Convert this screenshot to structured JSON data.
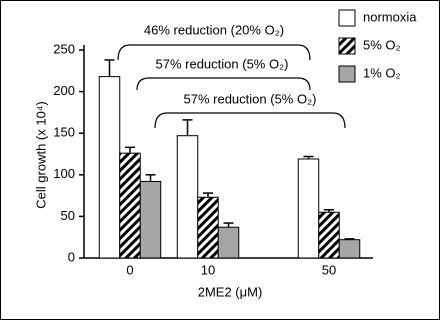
{
  "chart_data": {
    "type": "bar",
    "ylabel": "Cell growth (x 10⁴)",
    "xlabel": "2ME2 (μM)",
    "categories": [
      "0",
      "10",
      "50"
    ],
    "series": [
      {
        "name": "normoxia",
        "color": "#ffffff",
        "values": [
          218,
          147,
          119
        ],
        "errors": [
          20,
          19,
          3
        ]
      },
      {
        "name": "5% O₂",
        "color": "hatch",
        "values": [
          126,
          73,
          55
        ],
        "errors": [
          7,
          5,
          3
        ]
      },
      {
        "name": "1% O₂",
        "color": "#a6a6a6",
        "values": [
          92,
          37,
          22
        ],
        "errors": [
          8,
          5,
          1
        ]
      }
    ],
    "ylim": [
      0,
      250
    ],
    "yticks": [
      0,
      50,
      100,
      150,
      200,
      250
    ],
    "annotations": [
      "46% reduction (20% O₂)",
      "57% reduction (5% O₂)",
      "57% reduction (5% O₂)"
    ]
  }
}
